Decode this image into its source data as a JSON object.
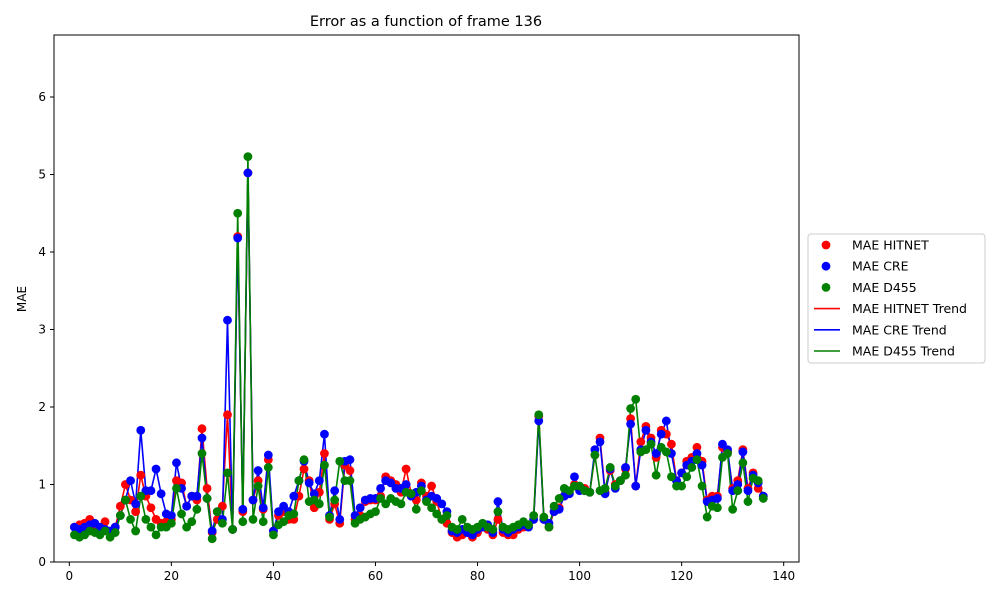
{
  "chart_data": {
    "type": "line",
    "title": "Error as a function of frame 136",
    "xlabel": "",
    "ylabel": "MAE",
    "xlim": [
      -3,
      143
    ],
    "ylim": [
      0,
      6.8
    ],
    "xticks": [
      0,
      20,
      40,
      60,
      80,
      100,
      120,
      140
    ],
    "yticks": [
      0,
      1,
      2,
      3,
      4,
      5,
      6
    ],
    "grid": false,
    "legend_position": "center-right outside",
    "x": [
      1,
      2,
      3,
      4,
      5,
      6,
      7,
      8,
      9,
      10,
      11,
      12,
      13,
      14,
      15,
      16,
      17,
      18,
      19,
      20,
      21,
      22,
      23,
      24,
      25,
      26,
      27,
      28,
      29,
      30,
      31,
      32,
      33,
      34,
      35,
      36,
      37,
      38,
      39,
      40,
      41,
      42,
      43,
      44,
      45,
      46,
      47,
      48,
      49,
      50,
      51,
      52,
      53,
      54,
      55,
      56,
      57,
      58,
      59,
      60,
      61,
      62,
      63,
      64,
      65,
      66,
      67,
      68,
      69,
      70,
      71,
      72,
      73,
      74,
      75,
      76,
      77,
      78,
      79,
      80,
      81,
      82,
      83,
      84,
      85,
      86,
      87,
      88,
      89,
      90,
      91,
      92,
      93,
      94,
      95,
      96,
      97,
      98,
      99,
      100,
      101,
      102,
      103,
      104,
      105,
      106,
      107,
      108,
      109,
      110,
      111,
      112,
      113,
      114,
      115,
      116,
      117,
      118,
      119,
      120,
      121,
      122,
      123,
      124,
      125,
      126,
      127,
      128,
      129,
      130,
      131,
      132,
      133,
      134,
      135,
      136
    ],
    "series": [
      {
        "name": "MAE HITNET",
        "marker_legend": "MAE HITNET",
        "trend_legend": "MAE HITNET Trend",
        "color": "#ff0000",
        "values": [
          0.45,
          0.48,
          0.5,
          0.55,
          0.45,
          0.42,
          0.52,
          0.38,
          0.45,
          0.72,
          1.0,
          0.8,
          0.65,
          1.12,
          0.85,
          0.7,
          0.55,
          0.5,
          0.52,
          0.55,
          1.05,
          1.02,
          0.72,
          0.85,
          0.8,
          1.72,
          0.95,
          0.38,
          0.55,
          0.72,
          1.9,
          0.42,
          4.2,
          0.65,
          5.02,
          0.8,
          1.05,
          0.68,
          1.32,
          0.4,
          0.6,
          0.65,
          0.55,
          0.55,
          0.85,
          1.2,
          1.05,
          0.7,
          0.9,
          1.4,
          0.55,
          0.75,
          0.5,
          1.25,
          1.18,
          0.55,
          0.6,
          0.78,
          0.8,
          0.8,
          0.85,
          1.1,
          1.05,
          1.0,
          0.9,
          1.2,
          0.88,
          0.8,
          1.02,
          0.85,
          0.98,
          0.78,
          0.55,
          0.5,
          0.38,
          0.32,
          0.35,
          0.38,
          0.32,
          0.38,
          0.45,
          0.42,
          0.35,
          0.55,
          0.38,
          0.35,
          0.35,
          0.42,
          0.45,
          0.48,
          0.55,
          1.88,
          0.55,
          0.45,
          0.65,
          0.7,
          0.85,
          0.9,
          1.0,
          0.95,
          0.95,
          0.9,
          1.38,
          1.6,
          0.9,
          1.18,
          1.0,
          1.05,
          1.2,
          1.85,
          0.98,
          1.55,
          1.75,
          1.6,
          1.35,
          1.7,
          1.65,
          1.52,
          1.05,
          1.15,
          1.3,
          1.35,
          1.48,
          1.3,
          0.8,
          0.85,
          0.85,
          1.48,
          1.42,
          0.95,
          1.05,
          1.45,
          0.95,
          1.15,
          0.95,
          0.85
        ]
      },
      {
        "name": "MAE CRE",
        "marker_legend": "MAE CRE",
        "trend_legend": "MAE CRE Trend",
        "color": "#0000ff",
        "values": [
          0.45,
          0.42,
          0.45,
          0.48,
          0.5,
          0.45,
          0.42,
          0.4,
          0.45,
          0.6,
          0.8,
          1.05,
          0.75,
          1.7,
          0.92,
          0.92,
          1.2,
          0.88,
          0.62,
          0.6,
          1.28,
          0.95,
          0.72,
          0.85,
          0.85,
          1.6,
          0.82,
          0.4,
          0.65,
          0.55,
          3.12,
          0.42,
          4.18,
          0.68,
          5.02,
          0.8,
          1.18,
          0.7,
          1.38,
          0.4,
          0.65,
          0.72,
          0.65,
          0.85,
          1.05,
          1.3,
          1.02,
          0.88,
          1.05,
          1.65,
          0.6,
          0.92,
          0.55,
          1.3,
          1.32,
          0.6,
          0.7,
          0.8,
          0.82,
          0.82,
          0.95,
          1.05,
          1.02,
          0.95,
          0.95,
          1.0,
          0.85,
          0.9,
          0.98,
          0.8,
          0.85,
          0.82,
          0.75,
          0.65,
          0.4,
          0.38,
          0.42,
          0.38,
          0.35,
          0.42,
          0.45,
          0.48,
          0.38,
          0.78,
          0.42,
          0.38,
          0.42,
          0.45,
          0.48,
          0.45,
          0.55,
          1.82,
          0.55,
          0.5,
          0.65,
          0.68,
          0.85,
          0.88,
          1.1,
          0.92,
          0.92,
          0.9,
          1.45,
          1.55,
          0.88,
          1.2,
          0.95,
          1.05,
          1.22,
          1.78,
          0.98,
          1.45,
          1.7,
          1.55,
          1.4,
          1.65,
          1.82,
          1.4,
          1.05,
          1.15,
          1.25,
          1.3,
          1.4,
          1.25,
          0.78,
          0.8,
          0.82,
          1.52,
          1.45,
          0.92,
          1.0,
          1.42,
          0.92,
          1.12,
          1.02,
          0.85
        ]
      },
      {
        "name": "MAE D455",
        "marker_legend": "MAE D455",
        "trend_legend": "MAE D455 Trend",
        "color": "#008000",
        "values": [
          0.35,
          0.32,
          0.35,
          0.4,
          0.38,
          0.35,
          0.4,
          0.32,
          0.38,
          0.6,
          0.8,
          0.55,
          0.4,
          0.85,
          0.55,
          0.45,
          0.35,
          0.45,
          0.45,
          0.5,
          0.95,
          0.62,
          0.45,
          0.52,
          0.68,
          1.4,
          0.82,
          0.3,
          0.65,
          0.5,
          1.15,
          0.42,
          4.5,
          0.52,
          5.23,
          0.55,
          0.98,
          0.52,
          1.22,
          0.35,
          0.48,
          0.52,
          0.6,
          0.62,
          1.05,
          1.32,
          0.78,
          0.8,
          0.75,
          1.25,
          0.58,
          0.8,
          1.3,
          1.05,
          1.05,
          0.5,
          0.55,
          0.58,
          0.62,
          0.65,
          0.82,
          0.75,
          0.82,
          0.78,
          0.75,
          0.9,
          0.88,
          0.68,
          0.92,
          0.78,
          0.7,
          0.62,
          0.55,
          0.6,
          0.45,
          0.42,
          0.55,
          0.45,
          0.42,
          0.45,
          0.5,
          0.45,
          0.42,
          0.65,
          0.45,
          0.42,
          0.45,
          0.48,
          0.52,
          0.48,
          0.6,
          1.9,
          0.58,
          0.45,
          0.72,
          0.82,
          0.95,
          0.92,
          0.98,
          0.98,
          0.92,
          0.9,
          1.38,
          0.92,
          0.95,
          1.22,
          0.98,
          1.05,
          1.12,
          1.98,
          2.1,
          1.42,
          1.45,
          1.52,
          1.12,
          1.48,
          1.42,
          1.1,
          0.98,
          0.98,
          1.1,
          1.22,
          1.32,
          0.98,
          0.58,
          0.72,
          0.7,
          1.35,
          1.4,
          0.68,
          0.92,
          1.28,
          0.78,
          1.08,
          1.05,
          0.82
        ]
      }
    ]
  }
}
